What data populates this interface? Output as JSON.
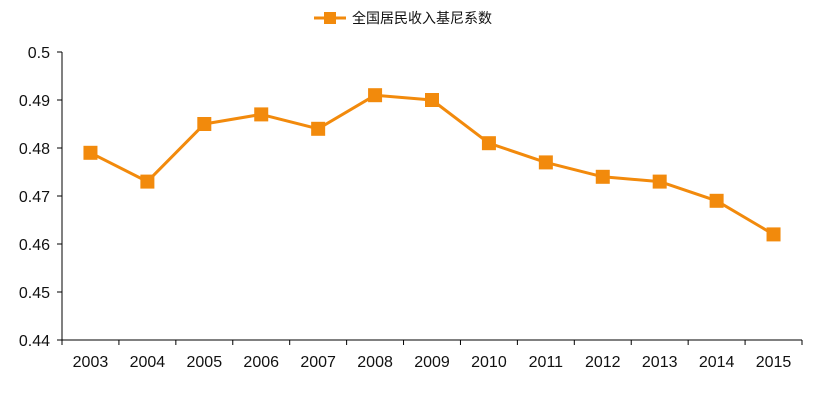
{
  "chart_data": {
    "type": "line",
    "title": "",
    "xlabel": "",
    "ylabel": "",
    "categories": [
      "2003",
      "2004",
      "2005",
      "2006",
      "2007",
      "2008",
      "2009",
      "2010",
      "2011",
      "2012",
      "2013",
      "2014",
      "2015"
    ],
    "series": [
      {
        "name": "全国居民收入基尼系数",
        "color": "#f28a0c",
        "marker": "square",
        "values": [
          0.479,
          0.473,
          0.485,
          0.487,
          0.484,
          0.491,
          0.49,
          0.481,
          0.477,
          0.474,
          0.473,
          0.469,
          0.462
        ]
      }
    ],
    "ylim": [
      0.44,
      0.5
    ],
    "yticks": [
      "0.44",
      "0.45",
      "0.46",
      "0.47",
      "0.48",
      "0.49",
      "0.5"
    ],
    "grid": false,
    "legend_position": "top-center"
  }
}
